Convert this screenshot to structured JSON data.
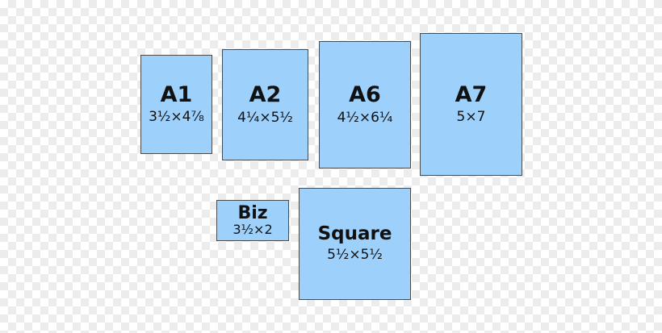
{
  "colors": {
    "card_fill": "#9dd0fb",
    "card_border": "#4a4a4a",
    "text": "#111111"
  },
  "cards": {
    "a1": {
      "name": "A1",
      "dims": "3½×4⅞"
    },
    "a2": {
      "name": "A2",
      "dims": "4¼×5½"
    },
    "a6": {
      "name": "A6",
      "dims": "4½×6¼"
    },
    "a7": {
      "name": "A7",
      "dims": "5×7"
    },
    "biz": {
      "name": "Biz",
      "dims": "3½×2"
    },
    "square": {
      "name": "Square",
      "dims": "5½×5½"
    }
  }
}
